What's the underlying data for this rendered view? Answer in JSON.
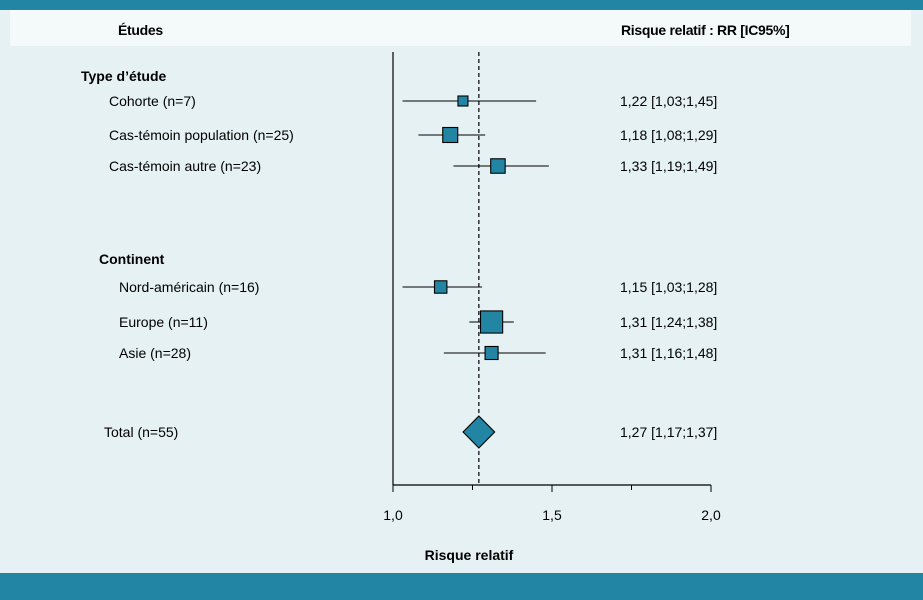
{
  "header": {
    "studies_label": "Études",
    "rr_label": "Risque relatif : RR [IC95%]"
  },
  "colors": {
    "frame": "#2185a3",
    "header_bg": "#f4f9fa",
    "plot_bg": "#e6f1f4",
    "marker": "#2185a3"
  },
  "chart_data": {
    "type": "forest",
    "xlabel": "Risque relatif",
    "xlim": [
      1.0,
      2.0
    ],
    "xticks": [
      1.0,
      1.5,
      2.0
    ],
    "xtick_labels": [
      "1,0",
      "1,5",
      "2,0"
    ],
    "minor_ticks": [
      1.25,
      1.75
    ],
    "reference_line": 1.27,
    "groups": [
      {
        "name": "Type d’étude",
        "rows": [
          {
            "label": "Cohorte (n=7)",
            "rr": 1.22,
            "lo": 1.03,
            "hi": 1.45,
            "text": "1,22 [1,03;1,45]",
            "weight": 7
          },
          {
            "label": "Cas-témoin population (n=25)",
            "rr": 1.18,
            "lo": 1.08,
            "hi": 1.29,
            "text": "1,18 [1,08;1,29]",
            "weight": 25
          },
          {
            "label": "Cas-témoin autre (n=23)",
            "rr": 1.33,
            "lo": 1.19,
            "hi": 1.49,
            "text": "1,33 [1,19;1,49]",
            "weight": 23
          }
        ]
      },
      {
        "name": "Continent",
        "rows": [
          {
            "label": "Nord-américain (n=16)",
            "rr": 1.15,
            "lo": 1.03,
            "hi": 1.28,
            "text": "1,15 [1,03;1,28]",
            "weight": 16
          },
          {
            "label": "Europe (n=11)",
            "rr": 1.31,
            "lo": 1.24,
            "hi": 1.38,
            "text": "1,31 [1,24;1,38]",
            "weight": 60
          },
          {
            "label": "Asie (n=28)",
            "rr": 1.31,
            "lo": 1.16,
            "hi": 1.48,
            "text": "1,31 [1,16;1,48]",
            "weight": 18
          }
        ]
      }
    ],
    "total": {
      "label": "Total (n=55)",
      "rr": 1.27,
      "lo": 1.17,
      "hi": 1.37,
      "text": "1,27 [1,17;1,37]"
    }
  }
}
